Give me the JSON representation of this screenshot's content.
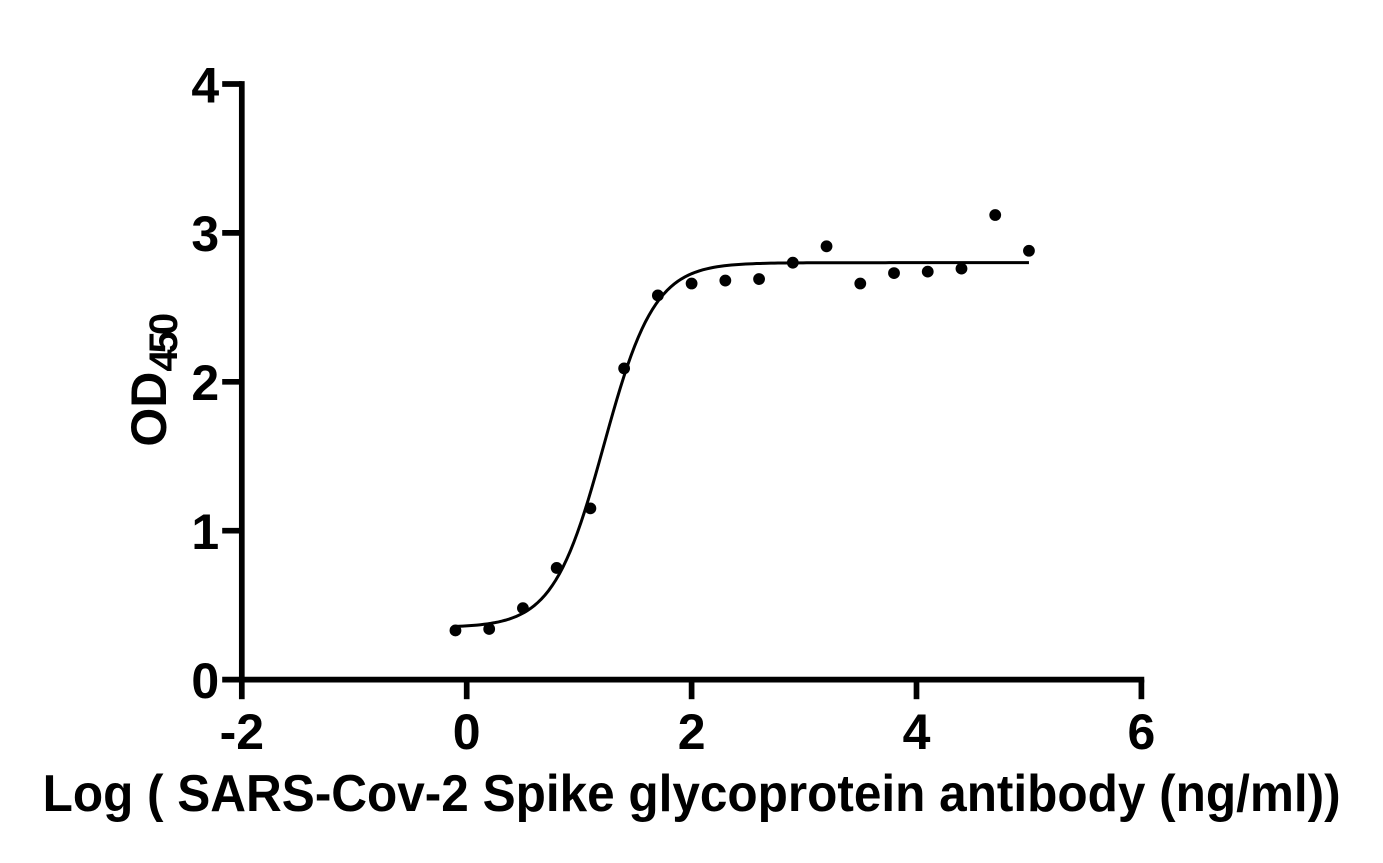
{
  "figure": {
    "background": "#ffffff",
    "foreground": "#000000"
  },
  "chart_data": {
    "type": "scatter",
    "title": "",
    "xlabel": "Log ( SARS-Cov-2 Spike glycoprotein antibody (ng/ml))",
    "ylabel_main": "OD",
    "ylabel_sub": "450",
    "xlim": [
      -2,
      6
    ],
    "ylim": [
      0,
      4
    ],
    "x_ticks": [
      "-2",
      "0",
      "2",
      "4",
      "6"
    ],
    "y_ticks": [
      "0",
      "1",
      "2",
      "3",
      "4"
    ],
    "grid": false,
    "legend": false,
    "marker_style": "filled-circle",
    "marker_color": "#000000",
    "curve_color": "#000000",
    "axis_color": "#000000",
    "points": {
      "x": [
        -0.1,
        0.2,
        0.5,
        0.8,
        1.1,
        1.4,
        1.7,
        2.0,
        2.3,
        2.6,
        2.9,
        3.2,
        3.5,
        3.8,
        4.1,
        4.4,
        4.7,
        5.0
      ],
      "y": [
        0.33,
        0.34,
        0.48,
        0.75,
        1.15,
        2.09,
        2.58,
        2.66,
        2.68,
        2.69,
        2.8,
        2.91,
        2.66,
        2.73,
        2.74,
        2.76,
        3.12,
        2.88
      ]
    },
    "fit_curve": {
      "model": "sigmoidal-4PL",
      "bottom": 0.35,
      "top": 2.8,
      "logEC50": 1.22,
      "hillslope": 1.93,
      "x_start": -0.1,
      "x_end": 5.0
    }
  }
}
